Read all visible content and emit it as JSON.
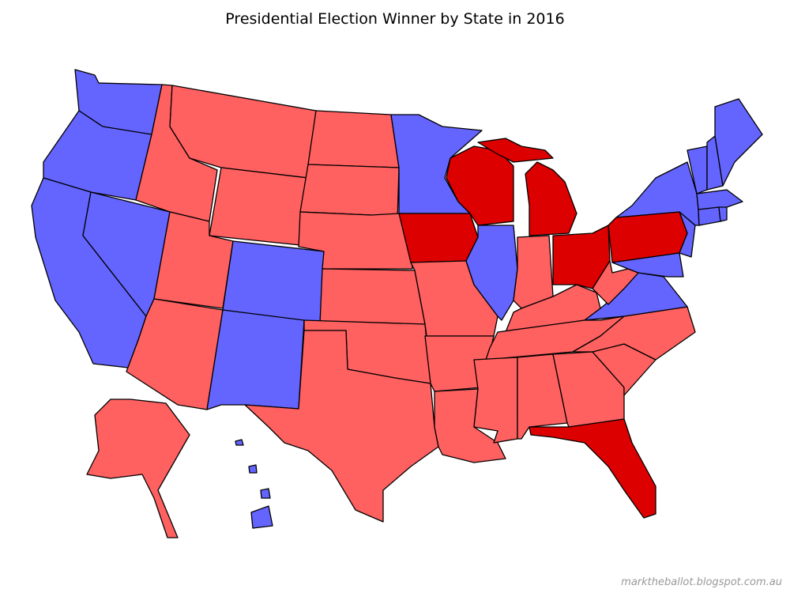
{
  "title": "Presidential Election Winner by State in 2016",
  "credit": "marktheballot.blogspot.com.au",
  "map": {
    "fills": [
      "#6464ff",
      "#ff6060",
      "#dd0000"
    ]
  }
}
